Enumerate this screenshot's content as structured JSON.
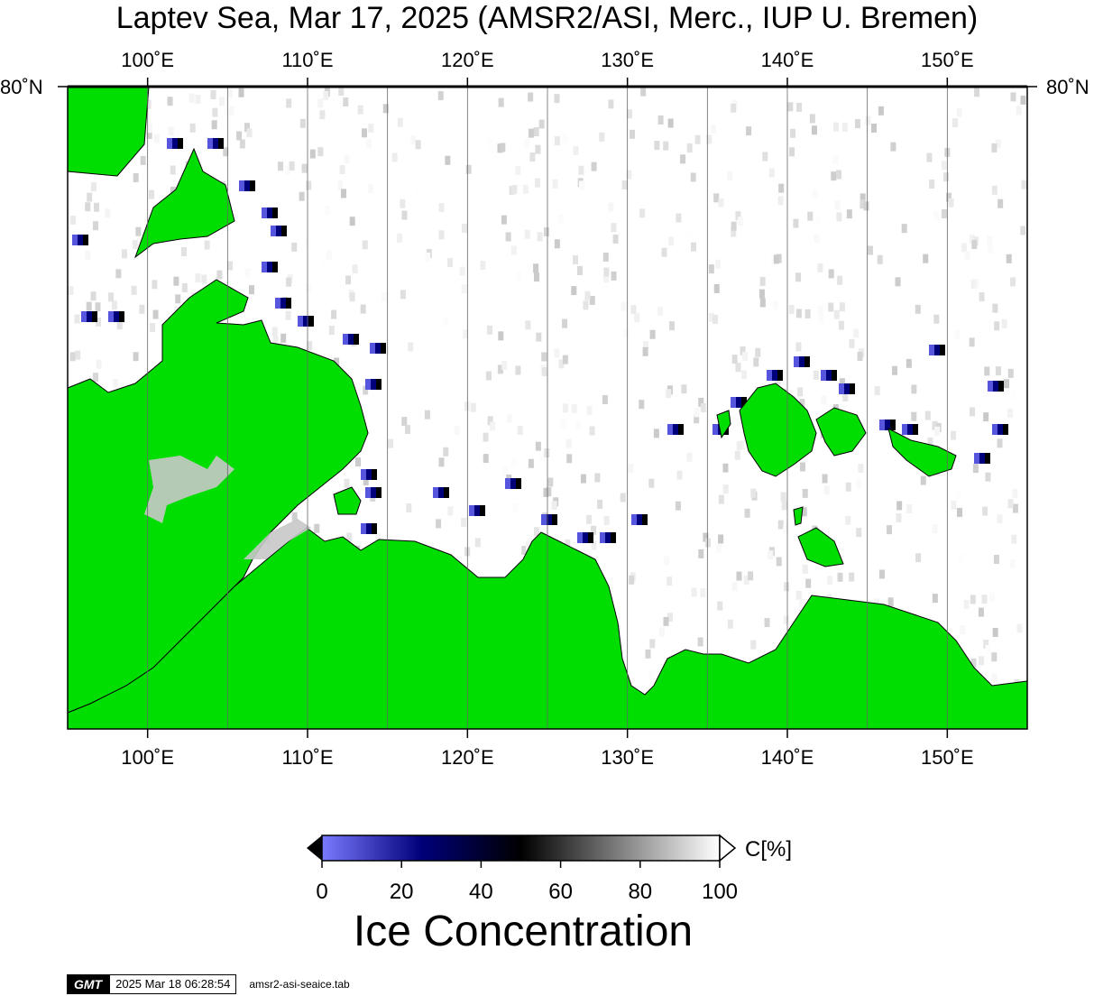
{
  "title": "Laptev Sea, Mar 17, 2025 (AMSR2/ASI, Merc., IUP U. Bremen)",
  "map": {
    "longitude_labels": [
      "100˚E",
      "110˚E",
      "120˚E",
      "130˚E",
      "140˚E",
      "150˚E"
    ],
    "longitudes_deg": [
      100,
      110,
      120,
      130,
      140,
      150
    ],
    "latitude_labels": {
      "left": "80˚N",
      "right": "80˚N"
    },
    "lon_range_deg": [
      95,
      155
    ],
    "land_color": "#00dd00",
    "water_color": "#ffffff",
    "gridline_color": "#666666",
    "low_concentration_color": "#00007a",
    "mid_color": "#000000",
    "high_color": "#ffffff"
  },
  "colorbar": {
    "title": "Ice Concentration",
    "unit": "C[%]",
    "ticks": [
      "0",
      "20",
      "40",
      "60",
      "80",
      "100"
    ],
    "tick_values": [
      0,
      20,
      40,
      60,
      80,
      100
    ],
    "colors": [
      "#7a7aff",
      "#00007a",
      "#000000",
      "#808080",
      "#ffffff"
    ]
  },
  "footer": {
    "logo": "GMT",
    "timestamp": "2025 Mar 18 06:28:54",
    "filename": "amsr2-asi-seaice.tab"
  }
}
